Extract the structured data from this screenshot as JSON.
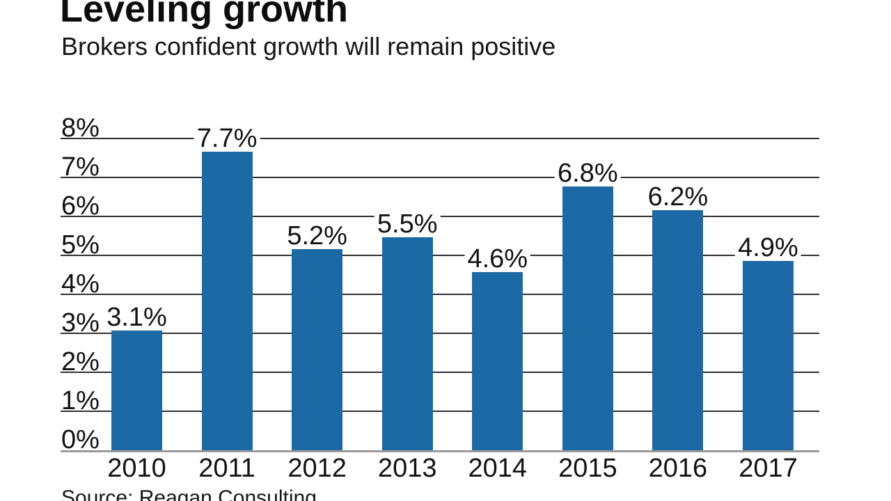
{
  "header": {
    "title": "Leveling growth",
    "subtitle": "Brokers confident growth will remain positive"
  },
  "footer": {
    "source": "Source: Reagan Consulting"
  },
  "chart_data": {
    "type": "bar",
    "title": "Leveling growth",
    "subtitle": "Brokers confident growth will remain positive",
    "categories": [
      "2010",
      "2011",
      "2012",
      "2013",
      "2014",
      "2015",
      "2016",
      "2017"
    ],
    "values": [
      3.1,
      7.7,
      5.2,
      5.5,
      4.6,
      6.8,
      6.2,
      4.9
    ],
    "value_labels": [
      "3.1%",
      "7.7%",
      "5.2%",
      "5.5%",
      "4.6%",
      "6.8%",
      "6.2%",
      "4.9%"
    ],
    "yticks": [
      {
        "value": 0,
        "label": "0%"
      },
      {
        "value": 1,
        "label": "1%"
      },
      {
        "value": 2,
        "label": "2%"
      },
      {
        "value": 3,
        "label": "3%"
      },
      {
        "value": 4,
        "label": "4%"
      },
      {
        "value": 5,
        "label": "5%"
      },
      {
        "value": 6,
        "label": "6%"
      },
      {
        "value": 7,
        "label": "7%"
      },
      {
        "value": 8,
        "label": "8%"
      }
    ],
    "ylim": [
      0,
      8
    ],
    "xlabel": "",
    "ylabel": "",
    "grid": true,
    "legend": false,
    "source": "Source: Reagan Consulting",
    "colors": {
      "bar": "#1c6aa5",
      "gridline": "#2f2f2f",
      "axis_line": "#999999",
      "text": "#121212"
    }
  }
}
